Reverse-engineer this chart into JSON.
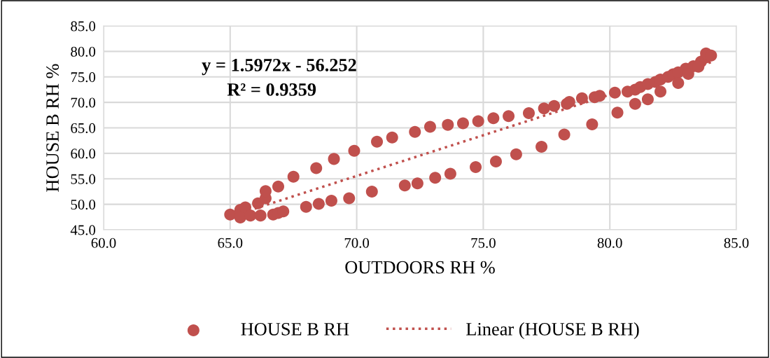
{
  "chart_data": {
    "type": "scatter",
    "xlabel": "OUTDOORS RH %",
    "ylabel": "HOUSE B RH %",
    "xlim": [
      60,
      85
    ],
    "xticks": [
      {
        "value": 60,
        "label": "60.0"
      },
      {
        "value": 65,
        "label": "65.0"
      },
      {
        "value": 70,
        "label": "70.0"
      },
      {
        "value": 75,
        "label": "75.0"
      },
      {
        "value": 80,
        "label": "80.0"
      },
      {
        "value": 85,
        "label": "85.0"
      }
    ],
    "ylim": [
      45,
      85
    ],
    "yticks": [
      {
        "value": 45,
        "label": "45.0"
      },
      {
        "value": 50,
        "label": "50.0"
      },
      {
        "value": 55,
        "label": "55.0"
      },
      {
        "value": 60,
        "label": "60.0"
      },
      {
        "value": 65,
        "label": "65.0"
      },
      {
        "value": 70,
        "label": "70.0"
      },
      {
        "value": 75,
        "label": "75.0"
      },
      {
        "value": 80,
        "label": "80.0"
      },
      {
        "value": 85,
        "label": "85.0"
      }
    ],
    "grid": true,
    "legend": "bottom",
    "annotations": [
      "y = 1.5972x - 56.252",
      "R² = 0.9359"
    ],
    "series": [
      {
        "name": "HOUSE B RH",
        "color": "#c0504d",
        "marker": "circle",
        "x": [
          65.0,
          65.4,
          65.6,
          66.1,
          66.4,
          66.4,
          66.9,
          67.5,
          68.4,
          69.1,
          69.9,
          70.8,
          71.4,
          72.3,
          72.9,
          73.6,
          74.2,
          74.8,
          75.4,
          76.0,
          76.8,
          77.4,
          77.8,
          78.3,
          78.4,
          78.9,
          79.4,
          79.6,
          80.2,
          80.7,
          81.0,
          81.2,
          81.5,
          81.8,
          82.0,
          82.3,
          82.5,
          82.7,
          83.0,
          83.3,
          83.6,
          83.8,
          83.8,
          84.0,
          65.4,
          65.8,
          66.2,
          66.7,
          66.9,
          67.1,
          68.0,
          68.5,
          69.0,
          69.7,
          70.6,
          71.9,
          72.4,
          73.1,
          73.7,
          74.7,
          75.5,
          76.3,
          77.3,
          78.2,
          79.3,
          80.3,
          81.0,
          81.5,
          82.0,
          82.7,
          83.1,
          83.5
        ],
        "values": [
          48.0,
          48.9,
          49.4,
          50.2,
          51.2,
          52.6,
          53.5,
          55.4,
          57.1,
          58.9,
          60.5,
          62.3,
          63.1,
          64.2,
          65.2,
          65.6,
          65.9,
          66.3,
          66.9,
          67.3,
          67.9,
          68.8,
          69.3,
          69.7,
          70.1,
          70.8,
          71.0,
          71.3,
          71.9,
          72.1,
          72.5,
          73.0,
          73.6,
          74.0,
          74.5,
          75.0,
          75.5,
          75.9,
          76.6,
          77.1,
          78.0,
          78.8,
          79.6,
          79.2,
          47.4,
          47.8,
          47.8,
          48.0,
          48.3,
          48.6,
          49.5,
          50.1,
          50.7,
          51.2,
          52.5,
          53.7,
          54.1,
          55.2,
          56.0,
          57.3,
          58.4,
          59.8,
          61.3,
          63.7,
          65.7,
          68.0,
          69.7,
          70.6,
          72.1,
          73.8,
          75.6,
          77.0
        ]
      },
      {
        "name": "Linear (HOUSE B RH)",
        "type": "line",
        "color": "#c0504d",
        "line_style": "dotted",
        "marker": "none",
        "x": [
          65.0,
          84.0
        ],
        "values": [
          47.6,
          77.9
        ]
      }
    ]
  }
}
